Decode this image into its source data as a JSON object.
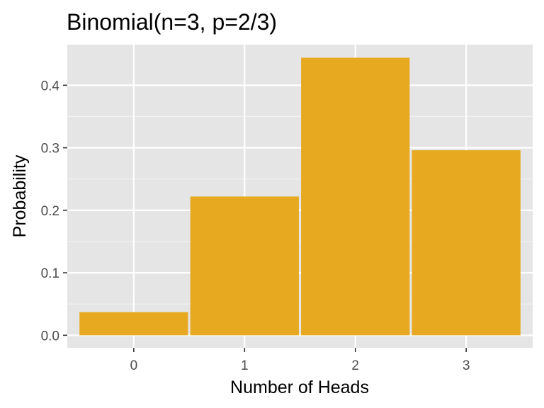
{
  "chart_data": {
    "type": "bar",
    "title": "Binomial(n=3, p=2/3)",
    "xlabel": "Number of Heads",
    "ylabel": "Probability",
    "categories": [
      "0",
      "1",
      "2",
      "3"
    ],
    "x": [
      0,
      1,
      2,
      3
    ],
    "values": [
      0.037,
      0.222,
      0.444,
      0.296
    ],
    "xlim": [
      -0.6,
      3.6
    ],
    "ylim": [
      -0.02,
      0.465
    ],
    "yticks": [
      0.0,
      0.1,
      0.2,
      0.3,
      0.4
    ],
    "ytick_labels": [
      "0.0",
      "0.1",
      "0.2",
      "0.3",
      "0.4"
    ],
    "grid": true,
    "legend": "none",
    "colors": {
      "bar": "#E7A91F",
      "panel": "#E5E5E5",
      "grid_major": "#FFFFFF",
      "grid_minor": "#F2F2F2",
      "tick_text": "#4D4D4D"
    }
  }
}
